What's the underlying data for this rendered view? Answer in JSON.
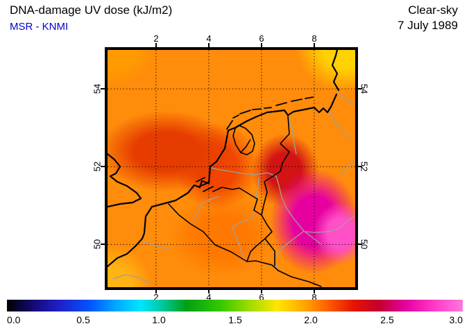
{
  "header": {
    "title": "DNA-damage UV dose (kJ/m2)",
    "source": "MSR - KNMI",
    "source_color": "#0000cc",
    "condition": "Clear-sky",
    "date": "7 July 1989"
  },
  "axes": {
    "lon_tick_labels": [
      "2",
      "4",
      "6",
      "8"
    ],
    "lat_tick_labels": [
      "54",
      "52",
      "50"
    ]
  },
  "colorbar_labels": [
    "0.0",
    "0.5",
    "1.0",
    "1.5",
    "2.0",
    "2.5",
    "3.0"
  ],
  "chart_data": {
    "type": "heatmap",
    "title": "DNA-damage UV dose (kJ/m2)",
    "source": "MSR - KNMI",
    "condition": "Clear-sky",
    "date": "7 July 1989",
    "units": "kJ/m2",
    "region": "Netherlands / Belgium / western Germany / southeast England",
    "lon_range": [
      0.2,
      9.5
    ],
    "lat_range": [
      48.9,
      55.0
    ],
    "lon_ticks": [
      2,
      4,
      6,
      8
    ],
    "lat_ticks": [
      54,
      52,
      50
    ],
    "grid": "dotted graticule every 2 degrees",
    "colorbar": {
      "min": 0.0,
      "max": 3.0,
      "tick_values": [
        0.0,
        0.5,
        1.0,
        1.5,
        2.0,
        2.5,
        3.0
      ],
      "stops": [
        {
          "value": 0.0,
          "color": "#000000"
        },
        {
          "value": 0.18,
          "color": "#150a78"
        },
        {
          "value": 0.35,
          "color": "#2020c8"
        },
        {
          "value": 0.55,
          "color": "#0055ff"
        },
        {
          "value": 0.72,
          "color": "#00aaff"
        },
        {
          "value": 0.88,
          "color": "#00e6ff"
        },
        {
          "value": 1.02,
          "color": "#00c8a0"
        },
        {
          "value": 1.18,
          "color": "#00a014"
        },
        {
          "value": 1.4,
          "color": "#32c800"
        },
        {
          "value": 1.6,
          "color": "#a0dc00"
        },
        {
          "value": 1.78,
          "color": "#ffe600"
        },
        {
          "value": 1.95,
          "color": "#ffaa00"
        },
        {
          "value": 2.1,
          "color": "#ff6400"
        },
        {
          "value": 2.28,
          "color": "#e61400"
        },
        {
          "value": 2.45,
          "color": "#c30030"
        },
        {
          "value": 2.62,
          "color": "#e600a0"
        },
        {
          "value": 2.82,
          "color": "#ff3cc8"
        },
        {
          "value": 3.0,
          "color": "#ff78dc"
        }
      ]
    },
    "field": {
      "background_value": 2.05,
      "background_color": "#ff8c0a",
      "blobs": [
        {
          "region": "pink-core-southeast",
          "lon": 9.0,
          "lat": 50.3,
          "rx_deg": 1.3,
          "ry_deg": 1.0,
          "value": 2.7,
          "color": "#ff50c8"
        },
        {
          "region": "magenta-southeast-germany",
          "lon": 8.0,
          "lat": 50.6,
          "rx_deg": 2.1,
          "ry_deg": 1.7,
          "value": 2.55,
          "color": "#e600a0"
        },
        {
          "region": "dark-red-east-of-netherlands",
          "lon": 6.9,
          "lat": 51.9,
          "rx_deg": 1.6,
          "ry_deg": 1.2,
          "value": 2.35,
          "color": "#d21414"
        },
        {
          "region": "red-north-sea-west",
          "lon": 2.4,
          "lat": 52.4,
          "rx_deg": 3.2,
          "ry_deg": 1.3,
          "value": 2.25,
          "color": "#e63c00"
        },
        {
          "region": "red-dutch-coast",
          "lon": 4.3,
          "lat": 52.0,
          "rx_deg": 2.0,
          "ry_deg": 1.4,
          "value": 2.2,
          "color": "#f04600"
        },
        {
          "region": "orange-belgium-south",
          "lon": 4.5,
          "lat": 50.2,
          "rx_deg": 2.5,
          "ry_deg": 1.3,
          "value": 2.1,
          "color": "#ff7800"
        },
        {
          "region": "yellow-northeast-corner",
          "lon": 9.2,
          "lat": 55.1,
          "rx_deg": 2.4,
          "ry_deg": 1.5,
          "value": 1.85,
          "color": "#ffd200"
        },
        {
          "region": "orange-northwest-corner",
          "lon": 0.4,
          "lat": 55.0,
          "rx_deg": 2.0,
          "ry_deg": 1.2,
          "value": 2.0,
          "color": "#ff9b00"
        },
        {
          "region": "amber-southwest-corner",
          "lon": 0.3,
          "lat": 48.9,
          "rx_deg": 2.0,
          "ry_deg": 1.4,
          "value": 1.95,
          "color": "#ffb414"
        }
      ]
    }
  }
}
